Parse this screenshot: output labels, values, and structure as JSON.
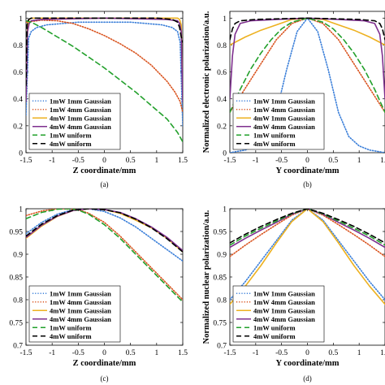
{
  "series_styles": [
    {
      "name": "1mW 1mm Gaussian",
      "color": "#3b7fd9",
      "dash": "1.2,2"
    },
    {
      "name": "1mW 4mm Gaussian",
      "color": "#d9531e",
      "dash": "1.2,2"
    },
    {
      "name": "4mW 1mm Gaussian",
      "color": "#edb120",
      "dash": ""
    },
    {
      "name": "4mW 4mm Gaussian",
      "color": "#7e2f8e",
      "dash": ""
    },
    {
      "name": "1mW uniform",
      "color": "#22a02b",
      "dash": "6,4"
    },
    {
      "name": "4mW uniform",
      "color": "#000000",
      "dash": "6,4"
    }
  ],
  "chart_data": [
    {
      "type": "line",
      "caption": "(a)",
      "xlabel": "Z coordinate/mm",
      "ylabel": "",
      "xlim": [
        -1.5,
        1.5
      ],
      "ylim": [
        0,
        1.05
      ],
      "xticks": [
        "-1.5",
        "-1",
        "-0.5",
        "0",
        "0.5",
        "1",
        "1.5"
      ],
      "yticks": [
        "0",
        "0.2",
        "0.4",
        "0.6",
        "0.8",
        "1"
      ],
      "legend_position": "bottom-left",
      "series": [
        {
          "name": "1mW 1mm Gaussian",
          "x": [
            -1.5,
            -1.45,
            -1.4,
            -1.3,
            -1.1,
            -0.5,
            0,
            0.5,
            1.1,
            1.3,
            1.4,
            1.45,
            1.5
          ],
          "values": [
            0.28,
            0.85,
            0.9,
            0.93,
            0.95,
            0.97,
            0.97,
            0.97,
            0.95,
            0.93,
            0.9,
            0.82,
            0.2
          ]
        },
        {
          "name": "1mW 4mm Gaussian",
          "x": [
            -1.5,
            -1.2,
            -0.9,
            -0.6,
            -0.3,
            0,
            0.3,
            0.6,
            0.9,
            1.2,
            1.35,
            1.45,
            1.5
          ],
          "values": [
            0.97,
            0.985,
            0.98,
            0.96,
            0.92,
            0.87,
            0.81,
            0.74,
            0.65,
            0.53,
            0.45,
            0.38,
            0.3
          ]
        },
        {
          "name": "4mW 1mm Gaussian",
          "x": [
            -1.5,
            -1.47,
            -1.44,
            -1.4,
            -1,
            0,
            1,
            1.4,
            1.44,
            1.47,
            1.5
          ],
          "values": [
            0.4,
            0.95,
            0.99,
            1.0,
            1.0,
            1.0,
            1.0,
            1.0,
            0.99,
            0.95,
            0.4
          ]
        },
        {
          "name": "4mW 4mm Gaussian",
          "x": [
            -1.5,
            -1.47,
            -1.44,
            -1.4,
            -1.2,
            -0.6,
            0,
            0.6,
            1.2,
            1.4,
            1.44,
            1.47,
            1.5
          ],
          "values": [
            0.38,
            0.9,
            0.96,
            0.98,
            0.99,
            0.995,
            1.0,
            0.995,
            0.99,
            0.98,
            0.96,
            0.9,
            0.38
          ]
        },
        {
          "name": "1mW uniform",
          "x": [
            -1.5,
            -1.4,
            -1.2,
            -0.9,
            -0.6,
            -0.3,
            0,
            0.3,
            0.6,
            0.9,
            1.2,
            1.4,
            1.5
          ],
          "values": [
            0.98,
            0.97,
            0.93,
            0.86,
            0.79,
            0.71,
            0.63,
            0.54,
            0.45,
            0.35,
            0.25,
            0.15,
            0.08
          ]
        },
        {
          "name": "4mW uniform",
          "x": [
            -1.5,
            -1.48,
            -1.45,
            -1.4,
            -1,
            0,
            1,
            1.3,
            1.4,
            1.44,
            1.47,
            1.5
          ],
          "values": [
            0.5,
            0.95,
            0.99,
            1.0,
            1.0,
            1.0,
            1.0,
            0.99,
            0.97,
            0.93,
            0.86,
            0.82
          ]
        }
      ]
    },
    {
      "type": "line",
      "caption": "(b)",
      "xlabel": "Y coordinate/mm",
      "ylabel": "Normalized electronic polarization/a.u.",
      "xlim": [
        -1.5,
        1.5
      ],
      "ylim": [
        0,
        1.05
      ],
      "xticks": [
        "-1.5",
        "-1",
        "-0.5",
        "0",
        "0.5",
        "1",
        "1.5"
      ],
      "yticks": [
        "0",
        "0.2",
        "0.4",
        "0.6",
        "0.8",
        "1"
      ],
      "legend_position": "bottom-left",
      "series": [
        {
          "name": "1mW 1mm Gaussian",
          "x": [
            -1.5,
            -1.2,
            -1,
            -0.8,
            -0.6,
            -0.4,
            -0.2,
            0,
            0.2,
            0.4,
            0.6,
            0.8,
            1,
            1.2,
            1.5
          ],
          "values": [
            0.0,
            0.02,
            0.05,
            0.12,
            0.3,
            0.62,
            0.9,
            1.0,
            0.9,
            0.62,
            0.3,
            0.12,
            0.05,
            0.02,
            0.0
          ]
        },
        {
          "name": "1mW 4mm Gaussian",
          "x": [
            -1.5,
            -1.2,
            -0.9,
            -0.6,
            -0.3,
            0,
            0.3,
            0.6,
            0.9,
            1.2,
            1.5
          ],
          "values": [
            0.3,
            0.48,
            0.66,
            0.84,
            0.96,
            1.0,
            0.96,
            0.84,
            0.66,
            0.48,
            0.3
          ]
        },
        {
          "name": "4mW 1mm Gaussian",
          "x": [
            -1.5,
            -1.2,
            -0.9,
            -0.6,
            -0.3,
            0,
            0.3,
            0.6,
            0.9,
            1.2,
            1.5
          ],
          "values": [
            0.8,
            0.86,
            0.91,
            0.95,
            0.99,
            1.0,
            0.99,
            0.95,
            0.91,
            0.86,
            0.8
          ]
        },
        {
          "name": "4mW 4mm Gaussian",
          "x": [
            -1.5,
            -1.45,
            -1.4,
            -1.3,
            -1.1,
            -0.6,
            0,
            0.6,
            1.1,
            1.3,
            1.4,
            1.45,
            1.5
          ],
          "values": [
            0.4,
            0.72,
            0.88,
            0.96,
            0.98,
            0.99,
            1.0,
            0.99,
            0.98,
            0.96,
            0.88,
            0.72,
            0.4
          ]
        },
        {
          "name": "1mW uniform",
          "x": [
            -1.5,
            -1.3,
            -1.1,
            -0.9,
            -0.7,
            -0.5,
            -0.3,
            0,
            0.3,
            0.5,
            0.7,
            0.9,
            1.1,
            1.3,
            1.5
          ],
          "values": [
            0.3,
            0.47,
            0.62,
            0.74,
            0.84,
            0.92,
            0.97,
            1.0,
            0.97,
            0.92,
            0.84,
            0.74,
            0.62,
            0.47,
            0.3
          ]
        },
        {
          "name": "4mW uniform",
          "x": [
            -1.5,
            -1.45,
            -1.4,
            -1.3,
            -1,
            0,
            1,
            1.3,
            1.4,
            1.45,
            1.5
          ],
          "values": [
            0.84,
            0.92,
            0.96,
            0.98,
            0.99,
            1.0,
            0.99,
            0.98,
            0.96,
            0.92,
            0.84
          ]
        }
      ]
    },
    {
      "type": "line",
      "caption": "(c)",
      "xlabel": "Z coordinate/mm",
      "ylabel": "",
      "xlim": [
        -1.5,
        1.5
      ],
      "ylim": [
        0.7,
        1.0
      ],
      "xticks": [
        "-1.5",
        "-1",
        "-0.5",
        "0",
        "0.5",
        "1",
        "1.5"
      ],
      "yticks": [
        "0.7",
        "0.75",
        "0.8",
        "0.85",
        "0.9",
        "0.95",
        "1"
      ],
      "legend_position": "bottom-left",
      "series": [
        {
          "name": "1mW 1mm Gaussian",
          "x": [
            -1.5,
            -1.2,
            -0.9,
            -0.6,
            -0.3,
            0,
            0.3,
            0.6,
            0.9,
            1.2,
            1.5
          ],
          "values": [
            0.945,
            0.97,
            0.988,
            0.998,
            1.0,
            0.994,
            0.98,
            0.96,
            0.935,
            0.91,
            0.885
          ]
        },
        {
          "name": "1mW 4mm Gaussian",
          "x": [
            -1.5,
            -1.2,
            -0.9,
            -0.6,
            -0.5,
            -0.3,
            0,
            0.3,
            0.6,
            0.9,
            1.2,
            1.5
          ],
          "values": [
            0.985,
            0.995,
            1.0,
            0.999,
            0.998,
            0.99,
            0.97,
            0.94,
            0.905,
            0.87,
            0.835,
            0.8
          ]
        },
        {
          "name": "4mW 1mm Gaussian",
          "x": [
            -1.5,
            -1.2,
            -0.9,
            -0.6,
            -0.3,
            0,
            0.3,
            0.6,
            0.9,
            1.2,
            1.5
          ],
          "values": [
            0.935,
            0.962,
            0.983,
            0.996,
            1.0,
            0.998,
            0.99,
            0.975,
            0.958,
            0.935,
            0.905
          ]
        },
        {
          "name": "4mW 4mm Gaussian",
          "x": [
            -1.5,
            -1.2,
            -0.9,
            -0.6,
            -0.3,
            0,
            0.3,
            0.6,
            0.9,
            1.2,
            1.5
          ],
          "values": [
            0.937,
            0.964,
            0.984,
            0.996,
            1.0,
            0.998,
            0.992,
            0.978,
            0.96,
            0.937,
            0.908
          ]
        },
        {
          "name": "1mW uniform",
          "x": [
            -1.5,
            -1.2,
            -0.9,
            -0.7,
            -0.5,
            -0.3,
            0,
            0.3,
            0.6,
            0.9,
            1.2,
            1.5
          ],
          "values": [
            0.978,
            0.992,
            0.999,
            1.0,
            0.997,
            0.988,
            0.965,
            0.935,
            0.9,
            0.865,
            0.83,
            0.795
          ]
        },
        {
          "name": "4mW uniform",
          "x": [
            -1.5,
            -1.2,
            -0.9,
            -0.6,
            -0.3,
            0,
            0.3,
            0.6,
            0.9,
            1.2,
            1.5
          ],
          "values": [
            0.94,
            0.966,
            0.985,
            0.997,
            1.0,
            0.998,
            0.991,
            0.977,
            0.958,
            0.934,
            0.905
          ]
        }
      ]
    },
    {
      "type": "line",
      "caption": "(d)",
      "xlabel": "Y coordinate/mm",
      "ylabel": "Normalized nuclear polarization/a.u.",
      "xlim": [
        -1.5,
        1.5
      ],
      "ylim": [
        0.7,
        1.0
      ],
      "xticks": [
        "-1.5",
        "-1",
        "-0.5",
        "0",
        "0.5",
        "1",
        "1.5"
      ],
      "yticks": [
        "0.7",
        "0.75",
        "0.8",
        "0.85",
        "0.9",
        "0.95",
        "1"
      ],
      "legend_position": "bottom-left",
      "series": [
        {
          "name": "1mW 1mm Gaussian",
          "x": [
            -1.5,
            -1.2,
            -0.9,
            -0.6,
            -0.3,
            0,
            0.3,
            0.6,
            0.9,
            1.2,
            1.5
          ],
          "values": [
            0.8,
            0.84,
            0.885,
            0.93,
            0.975,
            1.0,
            0.975,
            0.93,
            0.885,
            0.84,
            0.8
          ]
        },
        {
          "name": "1mW 4mm Gaussian",
          "x": [
            -1.5,
            -1.2,
            -0.9,
            -0.6,
            -0.3,
            0,
            0.3,
            0.6,
            0.9,
            1.2,
            1.5
          ],
          "values": [
            0.895,
            0.92,
            0.943,
            0.965,
            0.986,
            1.0,
            0.986,
            0.965,
            0.943,
            0.92,
            0.895
          ]
        },
        {
          "name": "4mW 1mm Gaussian",
          "x": [
            -1.5,
            -1.2,
            -0.9,
            -0.6,
            -0.3,
            0,
            0.3,
            0.6,
            0.9,
            1.2,
            1.5
          ],
          "values": [
            0.79,
            0.83,
            0.875,
            0.925,
            0.972,
            1.0,
            0.972,
            0.925,
            0.875,
            0.83,
            0.79
          ]
        },
        {
          "name": "4mW 4mm Gaussian",
          "x": [
            -1.5,
            -1.2,
            -0.9,
            -0.6,
            -0.3,
            0,
            0.3,
            0.6,
            0.9,
            1.2,
            1.5
          ],
          "values": [
            0.915,
            0.935,
            0.953,
            0.97,
            0.988,
            1.0,
            0.988,
            0.97,
            0.953,
            0.935,
            0.915
          ]
        },
        {
          "name": "1mW uniform",
          "x": [
            -1.5,
            -1.2,
            -0.9,
            -0.6,
            -0.3,
            0,
            0.3,
            0.6,
            0.9,
            1.2,
            1.5
          ],
          "values": [
            0.92,
            0.94,
            0.957,
            0.973,
            0.989,
            1.0,
            0.989,
            0.973,
            0.957,
            0.94,
            0.92
          ]
        },
        {
          "name": "4mW uniform",
          "x": [
            -1.5,
            -1.2,
            -0.9,
            -0.6,
            -0.3,
            0,
            0.3,
            0.6,
            0.9,
            1.2,
            1.5
          ],
          "values": [
            0.925,
            0.944,
            0.961,
            0.976,
            0.99,
            1.0,
            0.99,
            0.976,
            0.961,
            0.944,
            0.925
          ]
        }
      ]
    }
  ]
}
